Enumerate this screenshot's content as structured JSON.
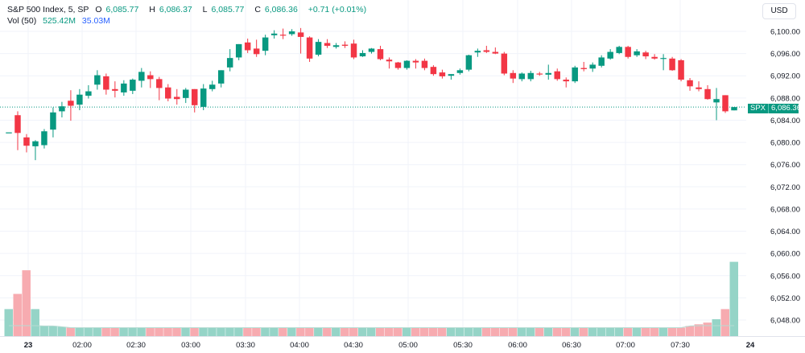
{
  "legend": {
    "symbol": "S&P 500 Index, 5, SP",
    "open_label": "O",
    "open": "6,085.77",
    "high_label": "H",
    "high": "6,086.37",
    "low_label": "L",
    "low": "6,085.77",
    "close_label": "C",
    "close": "6,086.36",
    "change": "+0.71 (+0.01%)",
    "vol_label": "Vol (50)",
    "vol_value": "525.42M",
    "vol_ma": "35.03M"
  },
  "currency_button": "USD",
  "price_tag": {
    "symbol": "SPX",
    "value": "6,086.36"
  },
  "colors": {
    "up": "#089981",
    "down": "#f23645",
    "vol_up": "#8fd2c4",
    "vol_down": "#f7a6ac",
    "vol_ma": "#b7dcd3",
    "last_line": "#089981"
  },
  "chart_data": {
    "type": "candlestick",
    "symbol": "S&P 500 Index",
    "interval": "5",
    "y_axis": {
      "ticks": [
        "6,100.00",
        "6,096.00",
        "6,092.00",
        "6,088.00",
        "6,084.00",
        "6,080.00",
        "6,076.00",
        "6,072.00",
        "6,068.00",
        "6,064.00",
        "6,060.00",
        "6,056.00",
        "6,052.00",
        "6,048.00"
      ],
      "range": [
        6046.2,
        6102.2
      ]
    },
    "x_axis": {
      "ticks": [
        "23",
        "02:00",
        "02:30",
        "03:00",
        "03:30",
        "04:00",
        "04:30",
        "05:00",
        "05:30",
        "06:00",
        "06:30",
        "07:00",
        "07:30",
        "24"
      ]
    },
    "last_price": 6086.36,
    "candles": [
      {
        "o": 6081.8,
        "h": 6081.8,
        "l": 6081.8,
        "c": 6081.8
      },
      {
        "o": 6084.9,
        "h": 6085.6,
        "l": 6078.6,
        "c": 6081.7
      },
      {
        "o": 6080.9,
        "h": 6081.5,
        "l": 6078.2,
        "c": 6079.4
      },
      {
        "o": 6079.3,
        "h": 6080.4,
        "l": 6076.8,
        "c": 6080.2
      },
      {
        "o": 6079.5,
        "h": 6082.4,
        "l": 6078.9,
        "c": 6082.0
      },
      {
        "o": 6082.3,
        "h": 6086.3,
        "l": 6080.9,
        "c": 6085.4
      },
      {
        "o": 6085.6,
        "h": 6087.3,
        "l": 6084.5,
        "c": 6086.5
      },
      {
        "o": 6087.5,
        "h": 6089.4,
        "l": 6083.9,
        "c": 6086.6
      },
      {
        "o": 6086.8,
        "h": 6089.6,
        "l": 6085.8,
        "c": 6088.6
      },
      {
        "o": 6088.4,
        "h": 6090.3,
        "l": 6087.9,
        "c": 6089.2
      },
      {
        "o": 6090.4,
        "h": 6093.0,
        "l": 6089.5,
        "c": 6092.1
      },
      {
        "o": 6091.9,
        "h": 6092.4,
        "l": 6088.6,
        "c": 6089.5
      },
      {
        "o": 6089.6,
        "h": 6091.0,
        "l": 6088.1,
        "c": 6089.3
      },
      {
        "o": 6089.0,
        "h": 6091.2,
        "l": 6088.4,
        "c": 6090.6
      },
      {
        "o": 6089.3,
        "h": 6091.5,
        "l": 6088.7,
        "c": 6091.3
      },
      {
        "o": 6091.1,
        "h": 6093.4,
        "l": 6089.9,
        "c": 6092.7
      },
      {
        "o": 6092.1,
        "h": 6092.8,
        "l": 6089.8,
        "c": 6091.4
      },
      {
        "o": 6091.4,
        "h": 6091.8,
        "l": 6087.6,
        "c": 6089.8
      },
      {
        "o": 6089.9,
        "h": 6090.5,
        "l": 6087.4,
        "c": 6087.9
      },
      {
        "o": 6088.2,
        "h": 6089.6,
        "l": 6086.8,
        "c": 6087.8
      },
      {
        "o": 6088.0,
        "h": 6089.8,
        "l": 6087.1,
        "c": 6089.5
      },
      {
        "o": 6089.6,
        "h": 6089.6,
        "l": 6085.4,
        "c": 6086.7
      },
      {
        "o": 6086.4,
        "h": 6090.5,
        "l": 6085.8,
        "c": 6089.7
      },
      {
        "o": 6089.6,
        "h": 6091.1,
        "l": 6089.2,
        "c": 6090.4
      },
      {
        "o": 6090.6,
        "h": 6093.0,
        "l": 6089.9,
        "c": 6093.0
      },
      {
        "o": 6093.5,
        "h": 6096.8,
        "l": 6092.8,
        "c": 6095.2
      },
      {
        "o": 6095.3,
        "h": 6097.7,
        "l": 6094.8,
        "c": 6097.7
      },
      {
        "o": 6098.0,
        "h": 6098.7,
        "l": 6096.1,
        "c": 6096.6
      },
      {
        "o": 6096.9,
        "h": 6098.5,
        "l": 6095.4,
        "c": 6095.9
      },
      {
        "o": 6096.5,
        "h": 6099.4,
        "l": 6095.7,
        "c": 6098.9
      },
      {
        "o": 6099.3,
        "h": 6100.2,
        "l": 6098.7,
        "c": 6099.6
      },
      {
        "o": 6099.4,
        "h": 6100.5,
        "l": 6098.6,
        "c": 6099.3
      },
      {
        "o": 6099.5,
        "h": 6100.4,
        "l": 6099.2,
        "c": 6100.0
      },
      {
        "o": 6099.8,
        "h": 6100.6,
        "l": 6096.0,
        "c": 6099.0
      },
      {
        "o": 6098.9,
        "h": 6099.1,
        "l": 6094.5,
        "c": 6095.1
      },
      {
        "o": 6095.8,
        "h": 6098.6,
        "l": 6095.5,
        "c": 6098.1
      },
      {
        "o": 6097.9,
        "h": 6098.6,
        "l": 6097.0,
        "c": 6097.4
      },
      {
        "o": 6097.2,
        "h": 6097.9,
        "l": 6096.9,
        "c": 6097.5
      },
      {
        "o": 6097.6,
        "h": 6098.2,
        "l": 6097.0,
        "c": 6097.4
      },
      {
        "o": 6097.8,
        "h": 6098.5,
        "l": 6095.0,
        "c": 6095.3
      },
      {
        "o": 6095.5,
        "h": 6096.6,
        "l": 6095.4,
        "c": 6096.1
      },
      {
        "o": 6096.3,
        "h": 6097.0,
        "l": 6096.0,
        "c": 6096.9
      },
      {
        "o": 6096.8,
        "h": 6097.4,
        "l": 6094.8,
        "c": 6095.0
      },
      {
        "o": 6094.9,
        "h": 6095.3,
        "l": 6093.3,
        "c": 6094.6
      },
      {
        "o": 6094.4,
        "h": 6094.5,
        "l": 6093.1,
        "c": 6093.4
      },
      {
        "o": 6093.4,
        "h": 6094.8,
        "l": 6093.1,
        "c": 6094.7
      },
      {
        "o": 6094.7,
        "h": 6095.0,
        "l": 6093.3,
        "c": 6094.4
      },
      {
        "o": 6094.7,
        "h": 6095.1,
        "l": 6093.0,
        "c": 6093.4
      },
      {
        "o": 6093.6,
        "h": 6093.9,
        "l": 6092.0,
        "c": 6092.3
      },
      {
        "o": 6092.6,
        "h": 6093.1,
        "l": 6091.5,
        "c": 6091.9
      },
      {
        "o": 6092.0,
        "h": 6092.3,
        "l": 6091.3,
        "c": 6092.3
      },
      {
        "o": 6092.5,
        "h": 6093.3,
        "l": 6092.2,
        "c": 6093.0
      },
      {
        "o": 6093.1,
        "h": 6095.8,
        "l": 6092.8,
        "c": 6095.7
      },
      {
        "o": 6096.2,
        "h": 6096.9,
        "l": 6095.4,
        "c": 6096.5
      },
      {
        "o": 6096.6,
        "h": 6097.4,
        "l": 6096.1,
        "c": 6096.3
      },
      {
        "o": 6096.3,
        "h": 6097.1,
        "l": 6095.9,
        "c": 6096.0
      },
      {
        "o": 6096.0,
        "h": 6096.3,
        "l": 6092.1,
        "c": 6092.4
      },
      {
        "o": 6092.5,
        "h": 6093.0,
        "l": 6090.7,
        "c": 6091.5
      },
      {
        "o": 6091.4,
        "h": 6092.6,
        "l": 6091.0,
        "c": 6092.4
      },
      {
        "o": 6091.4,
        "h": 6092.9,
        "l": 6091.0,
        "c": 6092.5
      },
      {
        "o": 6092.4,
        "h": 6092.7,
        "l": 6092.0,
        "c": 6092.3
      },
      {
        "o": 6092.2,
        "h": 6094.0,
        "l": 6091.3,
        "c": 6092.5
      },
      {
        "o": 6092.8,
        "h": 6093.3,
        "l": 6091.1,
        "c": 6091.4
      },
      {
        "o": 6091.3,
        "h": 6091.7,
        "l": 6089.9,
        "c": 6091.0
      },
      {
        "o": 6091.0,
        "h": 6093.8,
        "l": 6090.7,
        "c": 6093.5
      },
      {
        "o": 6093.4,
        "h": 6094.5,
        "l": 6092.8,
        "c": 6093.2
      },
      {
        "o": 6093.3,
        "h": 6094.4,
        "l": 6092.7,
        "c": 6094.0
      },
      {
        "o": 6093.8,
        "h": 6095.7,
        "l": 6093.5,
        "c": 6095.3
      },
      {
        "o": 6095.1,
        "h": 6096.8,
        "l": 6094.9,
        "c": 6096.3
      },
      {
        "o": 6096.1,
        "h": 6097.4,
        "l": 6095.9,
        "c": 6097.2
      },
      {
        "o": 6097.2,
        "h": 6097.4,
        "l": 6095.1,
        "c": 6095.4
      },
      {
        "o": 6095.7,
        "h": 6096.8,
        "l": 6095.4,
        "c": 6096.4
      },
      {
        "o": 6096.2,
        "h": 6096.5,
        "l": 6095.0,
        "c": 6095.5
      },
      {
        "o": 6095.4,
        "h": 6095.9,
        "l": 6094.9,
        "c": 6095.1
      },
      {
        "o": 6095.1,
        "h": 6095.9,
        "l": 6093.0,
        "c": 6095.2
      },
      {
        "o": 6095.1,
        "h": 6095.4,
        "l": 6092.9,
        "c": 6093.0
      },
      {
        "o": 6094.8,
        "h": 6095.0,
        "l": 6091.0,
        "c": 6091.3
      },
      {
        "o": 6091.2,
        "h": 6091.6,
        "l": 6089.3,
        "c": 6090.1
      },
      {
        "o": 6089.9,
        "h": 6091.0,
        "l": 6089.2,
        "c": 6089.6
      },
      {
        "o": 6089.6,
        "h": 6090.3,
        "l": 6087.7,
        "c": 6087.8
      },
      {
        "o": 6087.2,
        "h": 6089.8,
        "l": 6084.0,
        "c": 6087.8
      },
      {
        "o": 6088.5,
        "h": 6088.5,
        "l": 6085.3,
        "c": 6085.6
      },
      {
        "o": 6085.77,
        "h": 6086.37,
        "l": 6085.77,
        "c": 6086.36
      }
    ],
    "volume_note": "Vol (50) 525.42M, MA 35.03M",
    "volumes": [
      1.6,
      2.5,
      3.9,
      1.6,
      0.6,
      0.6,
      0.55,
      0.5,
      0.5,
      0.5,
      0.5,
      0.5,
      0.5,
      0.5,
      0.5,
      0.5,
      0.5,
      0.5,
      0.5,
      0.5,
      0.5,
      0.5,
      0.5,
      0.5,
      0.5,
      0.5,
      0.5,
      0.5,
      0.5,
      0.5,
      0.5,
      0.5,
      0.5,
      0.5,
      0.5,
      0.5,
      0.5,
      0.5,
      0.5,
      0.5,
      0.5,
      0.5,
      0.5,
      0.5,
      0.5,
      0.5,
      0.5,
      0.5,
      0.5,
      0.5,
      0.5,
      0.5,
      0.5,
      0.5,
      0.5,
      0.5,
      0.5,
      0.5,
      0.5,
      0.5,
      0.5,
      0.5,
      0.5,
      0.5,
      0.5,
      0.5,
      0.5,
      0.5,
      0.5,
      0.5,
      0.5,
      0.5,
      0.5,
      0.5,
      0.5,
      0.5,
      0.5,
      0.6,
      0.7,
      0.8,
      1.0,
      1.6,
      4.4
    ],
    "volume_axis_max": 5
  }
}
